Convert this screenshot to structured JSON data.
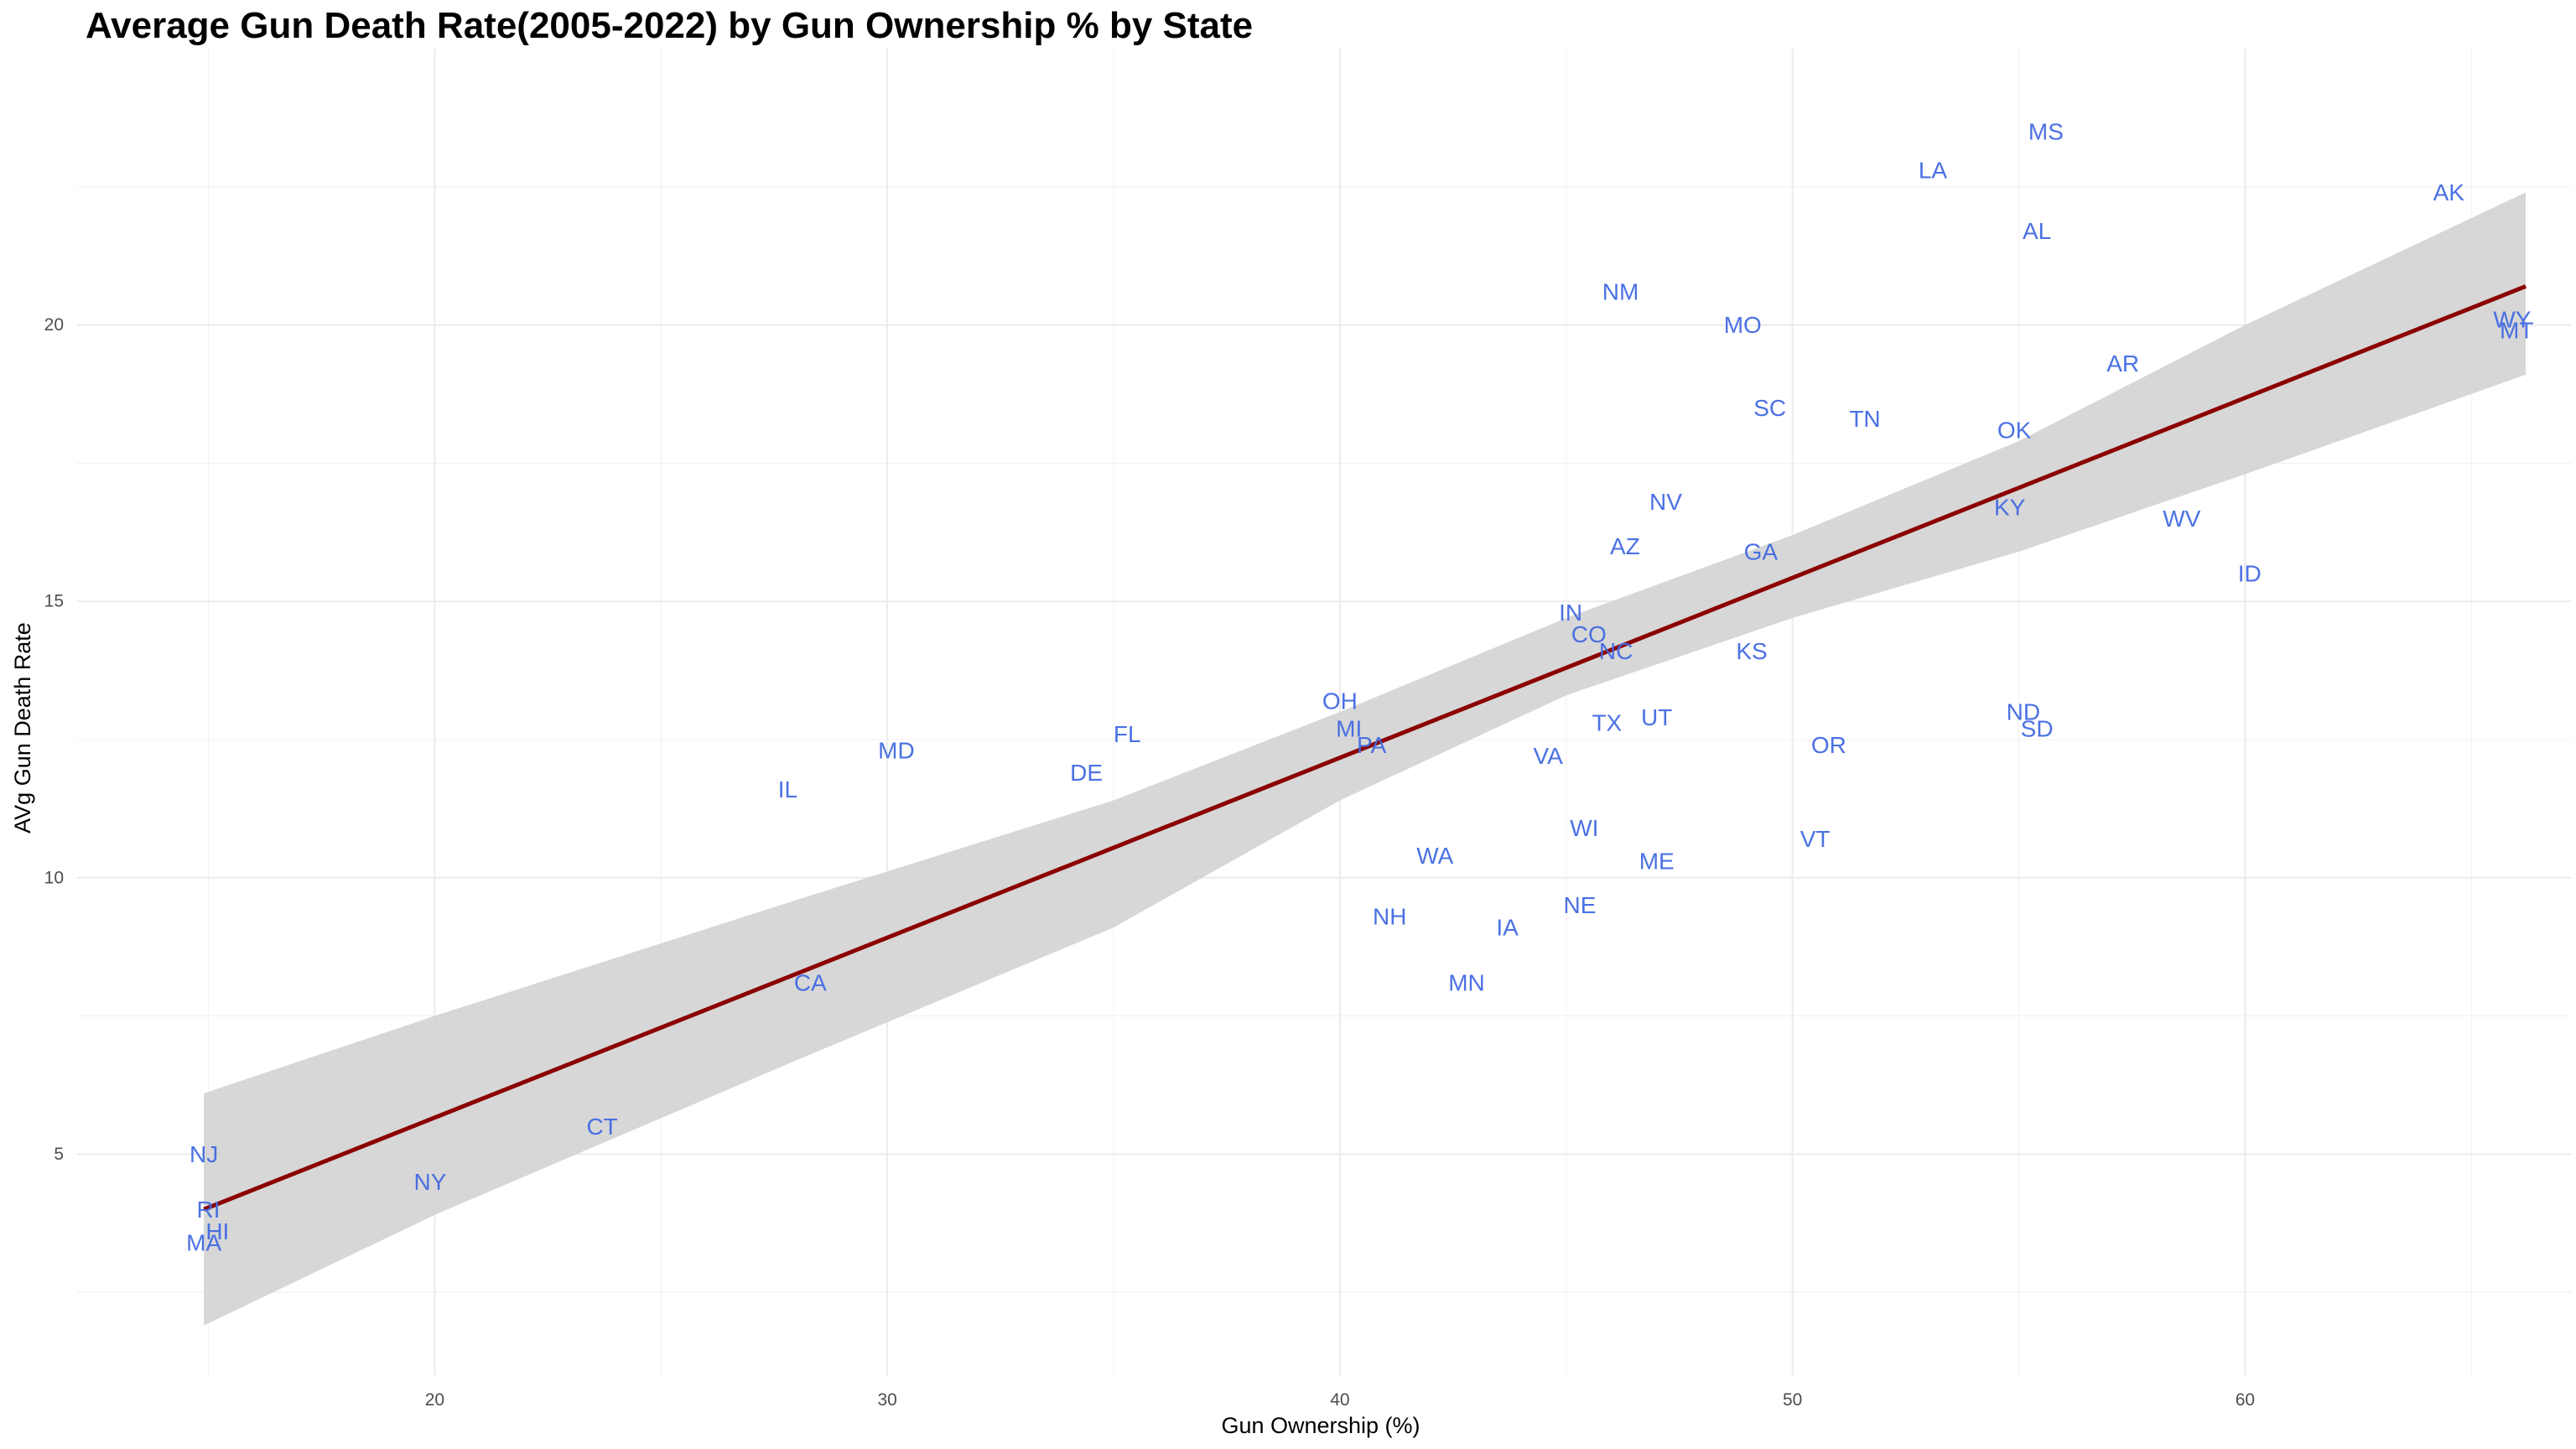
{
  "chart_data": {
    "type": "scatter",
    "title": "Average Gun Death Rate(2005-2022) by Gun Ownership % by State",
    "xlabel": "Gun Ownership (%)",
    "ylabel": "AVg Gun Death Rate",
    "xlim": [
      12.1,
      67.2
    ],
    "ylim": [
      1.0,
      25.0
    ],
    "x_ticks": [
      20,
      30,
      40,
      50,
      60
    ],
    "y_ticks": [
      5,
      10,
      15,
      20
    ],
    "grid": true,
    "legend": "none",
    "colors": {
      "labels": "#4169e1",
      "fit_line": "#8b0000",
      "confidence_band": "#d3d3d3",
      "grid": "#ebebeb"
    },
    "points": [
      {
        "label": "MS",
        "x": 55.6,
        "y": 23.5
      },
      {
        "label": "LA",
        "x": 53.1,
        "y": 22.8
      },
      {
        "label": "AK",
        "x": 64.5,
        "y": 22.4
      },
      {
        "label": "AL",
        "x": 55.4,
        "y": 21.7
      },
      {
        "label": "NM",
        "x": 46.2,
        "y": 20.6
      },
      {
        "label": "MO",
        "x": 48.9,
        "y": 20.0
      },
      {
        "label": "WY",
        "x": 65.9,
        "y": 20.1
      },
      {
        "label": "MT",
        "x": 66.0,
        "y": 19.9
      },
      {
        "label": "AR",
        "x": 57.3,
        "y": 19.3
      },
      {
        "label": "SC",
        "x": 49.5,
        "y": 18.5
      },
      {
        "label": "TN",
        "x": 51.6,
        "y": 18.3
      },
      {
        "label": "OK",
        "x": 54.9,
        "y": 18.1
      },
      {
        "label": "NV",
        "x": 47.2,
        "y": 16.8
      },
      {
        "label": "KY",
        "x": 54.8,
        "y": 16.7
      },
      {
        "label": "WV",
        "x": 58.6,
        "y": 16.5
      },
      {
        "label": "AZ",
        "x": 46.3,
        "y": 16.0
      },
      {
        "label": "GA",
        "x": 49.3,
        "y": 15.9
      },
      {
        "label": "ID",
        "x": 60.1,
        "y": 15.5
      },
      {
        "label": "IN",
        "x": 45.1,
        "y": 14.8
      },
      {
        "label": "CO",
        "x": 45.5,
        "y": 14.4
      },
      {
        "label": "NC",
        "x": 46.1,
        "y": 14.1
      },
      {
        "label": "KS",
        "x": 49.1,
        "y": 14.1
      },
      {
        "label": "OH",
        "x": 40.0,
        "y": 13.2
      },
      {
        "label": "ND",
        "x": 55.1,
        "y": 13.0
      },
      {
        "label": "UT",
        "x": 47.0,
        "y": 12.9
      },
      {
        "label": "MI",
        "x": 40.2,
        "y": 12.7
      },
      {
        "label": "SD",
        "x": 55.4,
        "y": 12.7
      },
      {
        "label": "TX",
        "x": 45.9,
        "y": 12.8
      },
      {
        "label": "FL",
        "x": 35.3,
        "y": 12.6
      },
      {
        "label": "PA",
        "x": 40.7,
        "y": 12.4
      },
      {
        "label": "OR",
        "x": 50.8,
        "y": 12.4
      },
      {
        "label": "MD",
        "x": 30.2,
        "y": 12.3
      },
      {
        "label": "VA",
        "x": 44.6,
        "y": 12.2
      },
      {
        "label": "DE",
        "x": 34.4,
        "y": 11.9
      },
      {
        "label": "IL",
        "x": 27.8,
        "y": 11.6
      },
      {
        "label": "WI",
        "x": 45.4,
        "y": 10.9
      },
      {
        "label": "VT",
        "x": 50.5,
        "y": 10.7
      },
      {
        "label": "WA",
        "x": 42.1,
        "y": 10.4
      },
      {
        "label": "ME",
        "x": 47.0,
        "y": 10.3
      },
      {
        "label": "NE",
        "x": 45.3,
        "y": 9.5
      },
      {
        "label": "NH",
        "x": 41.1,
        "y": 9.3
      },
      {
        "label": "IA",
        "x": 43.7,
        "y": 9.1
      },
      {
        "label": "CA",
        "x": 28.3,
        "y": 8.1
      },
      {
        "label": "MN",
        "x": 42.8,
        "y": 8.1
      },
      {
        "label": "CT",
        "x": 23.7,
        "y": 5.5
      },
      {
        "label": "NJ",
        "x": 14.9,
        "y": 5.0
      },
      {
        "label": "NY",
        "x": 19.9,
        "y": 4.5
      },
      {
        "label": "RI",
        "x": 15.0,
        "y": 4.0
      },
      {
        "label": "HI",
        "x": 15.2,
        "y": 3.6
      },
      {
        "label": "MA",
        "x": 14.9,
        "y": 3.4
      }
    ],
    "fit_line": {
      "x": [
        14.9,
        66.2
      ],
      "y": [
        4.0,
        20.7
      ]
    },
    "confidence_band": {
      "x": [
        14.9,
        20.0,
        28.0,
        35.0,
        40.0,
        45.0,
        50.0,
        55.0,
        60.0,
        66.2
      ],
      "lower": [
        1.9,
        3.9,
        6.7,
        9.1,
        11.4,
        13.3,
        14.7,
        15.9,
        17.3,
        19.1
      ],
      "upper": [
        6.1,
        7.5,
        9.6,
        11.4,
        13.0,
        14.7,
        16.2,
        17.9,
        20.0,
        22.4
      ]
    }
  }
}
